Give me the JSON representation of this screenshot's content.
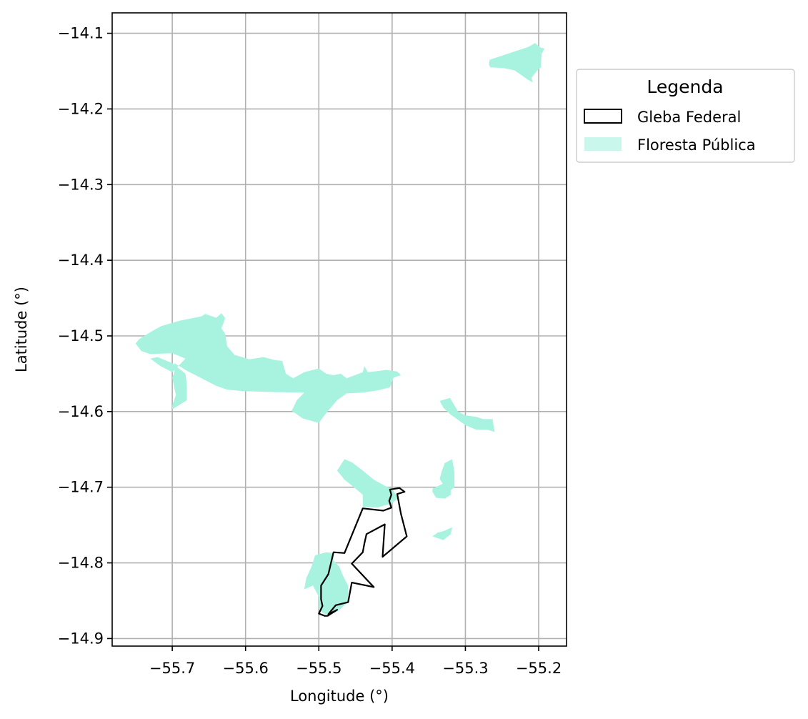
{
  "chart_data": {
    "type": "map",
    "xlabel": "Longitude (°)",
    "ylabel": "Latitude (°)",
    "xlim": [
      -55.782,
      -55.162
    ],
    "ylim": [
      -14.91,
      -14.073
    ],
    "x_ticks": [
      {
        "value": -55.7,
        "label": "−55.7"
      },
      {
        "value": -55.6,
        "label": "−55.6"
      },
      {
        "value": -55.5,
        "label": "−55.5"
      },
      {
        "value": -55.4,
        "label": "−55.4"
      },
      {
        "value": -55.3,
        "label": "−55.3"
      },
      {
        "value": -55.2,
        "label": "−55.2"
      }
    ],
    "y_ticks": [
      {
        "value": -14.1,
        "label": "−14.1"
      },
      {
        "value": -14.2,
        "label": "−14.2"
      },
      {
        "value": -14.3,
        "label": "−14.3"
      },
      {
        "value": -14.4,
        "label": "−14.4"
      },
      {
        "value": -14.5,
        "label": "−14.5"
      },
      {
        "value": -14.6,
        "label": "−14.6"
      },
      {
        "value": -14.7,
        "label": "−14.7"
      },
      {
        "value": -14.8,
        "label": "−14.8"
      },
      {
        "value": -14.9,
        "label": "−14.9"
      }
    ],
    "grid": true,
    "legend": {
      "title": "Legenda",
      "placement": "outside-upper-right",
      "entries": [
        {
          "label": "Gleba Federal",
          "style": "outline",
          "color": "#000000"
        },
        {
          "label": "Floresta Pública",
          "style": "fill",
          "color": "#a7f3e0"
        }
      ]
    },
    "colors": {
      "forest_fill": "#a7f3e0",
      "legend_forest_patch": "#c9f7ec",
      "gleba_edge": "#000000",
      "grid": "#b0b0b0"
    },
    "layers": [
      {
        "name": "Floresta Pública",
        "style": "fill",
        "polygons": [
          [
            [
              -55.267,
              -14.135
            ],
            [
              -55.214,
              -14.118
            ],
            [
              -55.205,
              -14.113
            ],
            [
              -55.197,
              -14.119
            ],
            [
              -55.192,
              -14.12
            ],
            [
              -55.196,
              -14.127
            ],
            [
              -55.197,
              -14.145
            ],
            [
              -55.201,
              -14.148
            ],
            [
              -55.21,
              -14.159
            ],
            [
              -55.208,
              -14.165
            ],
            [
              -55.215,
              -14.161
            ],
            [
              -55.233,
              -14.149
            ],
            [
              -55.248,
              -14.146
            ],
            [
              -55.266,
              -14.145
            ],
            [
              -55.268,
              -14.141
            ]
          ],
          [
            [
              -55.745,
              -14.504
            ],
            [
              -55.728,
              -14.494
            ],
            [
              -55.715,
              -14.487
            ],
            [
              -55.69,
              -14.48
            ],
            [
              -55.67,
              -14.476
            ],
            [
              -55.66,
              -14.474
            ],
            [
              -55.655,
              -14.471
            ],
            [
              -55.64,
              -14.476
            ],
            [
              -55.633,
              -14.47
            ],
            [
              -55.628,
              -14.476
            ],
            [
              -55.63,
              -14.483
            ],
            [
              -55.633,
              -14.49
            ],
            [
              -55.628,
              -14.497
            ],
            [
              -55.625,
              -14.514
            ],
            [
              -55.615,
              -14.525
            ],
            [
              -55.595,
              -14.531
            ],
            [
              -55.575,
              -14.528
            ],
            [
              -55.56,
              -14.532
            ],
            [
              -55.55,
              -14.533
            ],
            [
              -55.545,
              -14.55
            ],
            [
              -55.535,
              -14.556
            ],
            [
              -55.52,
              -14.548
            ],
            [
              -55.5,
              -14.543
            ],
            [
              -55.49,
              -14.55
            ],
            [
              -55.48,
              -14.552
            ],
            [
              -55.47,
              -14.55
            ],
            [
              -55.462,
              -14.556
            ],
            [
              -55.44,
              -14.548
            ],
            [
              -55.438,
              -14.54
            ],
            [
              -55.433,
              -14.548
            ],
            [
              -55.408,
              -14.545
            ],
            [
              -55.393,
              -14.547
            ],
            [
              -55.388,
              -14.552
            ],
            [
              -55.398,
              -14.555
            ],
            [
              -55.403,
              -14.568
            ],
            [
              -55.42,
              -14.572
            ],
            [
              -55.44,
              -14.575
            ],
            [
              -55.462,
              -14.576
            ],
            [
              -55.475,
              -14.585
            ],
            [
              -55.49,
              -14.602
            ],
            [
              -55.5,
              -14.615
            ],
            [
              -55.522,
              -14.609
            ],
            [
              -55.537,
              -14.599
            ],
            [
              -55.53,
              -14.585
            ],
            [
              -55.52,
              -14.575
            ],
            [
              -55.57,
              -14.574
            ],
            [
              -55.603,
              -14.573
            ],
            [
              -55.625,
              -14.571
            ],
            [
              -55.64,
              -14.566
            ],
            [
              -55.66,
              -14.556
            ],
            [
              -55.68,
              -14.546
            ],
            [
              -55.697,
              -14.536
            ],
            [
              -55.697,
              -14.548
            ],
            [
              -55.7,
              -14.555
            ],
            [
              -55.698,
              -14.565
            ],
            [
              -55.695,
              -14.578
            ],
            [
              -55.7,
              -14.592
            ],
            [
              -55.7,
              -14.597
            ],
            [
              -55.68,
              -14.585
            ],
            [
              -55.68,
              -14.565
            ],
            [
              -55.682,
              -14.55
            ],
            [
              -55.7,
              -14.536
            ],
            [
              -55.72,
              -14.528
            ],
            [
              -55.73,
              -14.53
            ],
            [
              -55.716,
              -14.54
            ],
            [
              -55.7,
              -14.548
            ],
            [
              -55.682,
              -14.53
            ],
            [
              -55.7,
              -14.523
            ],
            [
              -55.73,
              -14.524
            ],
            [
              -55.742,
              -14.52
            ],
            [
              -55.75,
              -14.51
            ]
          ],
          [
            [
              -55.335,
              -14.586
            ],
            [
              -55.321,
              -14.582
            ],
            [
              -55.31,
              -14.6
            ],
            [
              -55.3,
              -14.605
            ],
            [
              -55.285,
              -14.607
            ],
            [
              -55.276,
              -14.61
            ],
            [
              -55.263,
              -14.61
            ],
            [
              -55.26,
              -14.627
            ],
            [
              -55.27,
              -14.624
            ],
            [
              -55.285,
              -14.624
            ],
            [
              -55.3,
              -14.618
            ],
            [
              -55.32,
              -14.604
            ],
            [
              -55.33,
              -14.595
            ]
          ],
          [
            [
              -55.475,
              -14.678
            ],
            [
              -55.465,
              -14.663
            ],
            [
              -55.455,
              -14.667
            ],
            [
              -55.44,
              -14.678
            ],
            [
              -55.425,
              -14.69
            ],
            [
              -55.41,
              -14.698
            ],
            [
              -55.4,
              -14.702
            ],
            [
              -55.395,
              -14.71
            ],
            [
              -55.392,
              -14.715
            ],
            [
              -55.402,
              -14.722
            ],
            [
              -55.41,
              -14.724
            ],
            [
              -55.42,
              -14.727
            ],
            [
              -55.44,
              -14.726
            ],
            [
              -55.44,
              -14.71
            ],
            [
              -55.452,
              -14.7
            ],
            [
              -55.465,
              -14.69
            ]
          ],
          [
            [
              -55.33,
              -14.695
            ],
            [
              -55.323,
              -14.7
            ],
            [
              -55.32,
              -14.7
            ],
            [
              -55.32,
              -14.71
            ],
            [
              -55.328,
              -14.715
            ],
            [
              -55.34,
              -14.714
            ],
            [
              -55.345,
              -14.706
            ],
            [
              -55.345,
              -14.702
            ]
          ],
          [
            [
              -55.318,
              -14.663
            ],
            [
              -55.315,
              -14.68
            ],
            [
              -55.315,
              -14.7
            ],
            [
              -55.32,
              -14.704
            ],
            [
              -55.327,
              -14.705
            ],
            [
              -55.33,
              -14.697
            ],
            [
              -55.335,
              -14.689
            ],
            [
              -55.332,
              -14.678
            ],
            [
              -55.328,
              -14.668
            ]
          ],
          [
            [
              -55.338,
              -14.76
            ],
            [
              -55.33,
              -14.758
            ],
            [
              -55.318,
              -14.753
            ],
            [
              -55.32,
              -14.762
            ],
            [
              -55.33,
              -14.77
            ],
            [
              -55.345,
              -14.765
            ]
          ],
          [
            [
              -55.48,
              -14.787
            ],
            [
              -55.49,
              -14.786
            ],
            [
              -55.505,
              -14.79
            ],
            [
              -55.51,
              -14.805
            ],
            [
              -55.517,
              -14.82
            ],
            [
              -55.52,
              -14.835
            ],
            [
              -55.508,
              -14.83
            ],
            [
              -55.5,
              -14.845
            ],
            [
              -55.5,
              -14.86
            ],
            [
              -55.495,
              -14.866
            ],
            [
              -55.49,
              -14.868
            ],
            [
              -55.478,
              -14.866
            ],
            [
              -55.472,
              -14.862
            ],
            [
              -55.46,
              -14.852
            ],
            [
              -55.46,
              -14.83
            ],
            [
              -55.467,
              -14.817
            ],
            [
              -55.472,
              -14.805
            ],
            [
              -55.48,
              -14.797
            ]
          ]
        ]
      },
      {
        "name": "Gleba Federal",
        "style": "outline",
        "polygons": [
          [
            [
              -55.403,
              -14.703
            ],
            [
              -55.39,
              -14.701
            ],
            [
              -55.383,
              -14.706
            ],
            [
              -55.393,
              -14.709
            ],
            [
              -55.388,
              -14.735
            ],
            [
              -55.38,
              -14.765
            ],
            [
              -55.413,
              -14.792
            ],
            [
              -55.41,
              -14.749
            ],
            [
              -55.435,
              -14.762
            ],
            [
              -55.438,
              -14.775
            ],
            [
              -55.44,
              -14.786
            ],
            [
              -55.455,
              -14.801
            ],
            [
              -55.425,
              -14.832
            ],
            [
              -55.455,
              -14.826
            ],
            [
              -55.46,
              -14.852
            ],
            [
              -55.477,
              -14.856
            ],
            [
              -55.487,
              -14.868
            ],
            [
              -55.475,
              -14.862
            ],
            [
              -55.488,
              -14.87
            ],
            [
              -55.492,
              -14.87
            ],
            [
              -55.5,
              -14.867
            ],
            [
              -55.495,
              -14.857
            ],
            [
              -55.497,
              -14.848
            ],
            [
              -55.497,
              -14.83
            ],
            [
              -55.487,
              -14.815
            ],
            [
              -55.48,
              -14.786
            ],
            [
              -55.465,
              -14.787
            ],
            [
              -55.44,
              -14.728
            ],
            [
              -55.412,
              -14.731
            ],
            [
              -55.401,
              -14.727
            ],
            [
              -55.404,
              -14.718
            ],
            [
              -55.401,
              -14.71
            ]
          ]
        ]
      }
    ]
  }
}
